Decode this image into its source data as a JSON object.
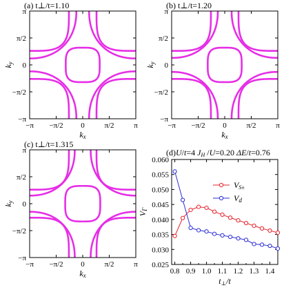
{
  "colors": {
    "fermi_surface": "#e62ee6",
    "axes": "#000000",
    "series_s": "#e8202a",
    "series_d": "#2b2bd6"
  },
  "fermi_panels": [
    {
      "label": "(a) t⊥/t=1.10",
      "xlabel": "kx",
      "ylabel": "ky",
      "xticks": [
        "−π",
        "−π/2",
        "0",
        "π/2",
        "π"
      ],
      "yticks": [
        "−π",
        "−π/2",
        "0",
        "π/2",
        "π"
      ],
      "curves": [
        {
          "kind": "closed_center",
          "a": 0.32,
          "p": 3.5
        },
        {
          "kind": "band_corner",
          "a": 0.26,
          "p": 3.8
        },
        {
          "kind": "small_corner",
          "a": 0.12,
          "p": 2.2
        }
      ]
    },
    {
      "label": "(b) t⊥/t=1.20",
      "xlabel": "kx",
      "ylabel": "ky",
      "xticks": [
        "−π",
        "−π/2",
        "0",
        "π/2",
        "π"
      ],
      "yticks": [
        "−π",
        "−π/2",
        "0",
        "π/2",
        "π"
      ],
      "curves": [
        {
          "kind": "closed_center",
          "a": 0.32,
          "p": 3.5
        },
        {
          "kind": "band_corner",
          "a": 0.26,
          "p": 3.8
        },
        {
          "kind": "small_corner",
          "a": 0.13,
          "p": 2.2
        }
      ]
    },
    {
      "label": "(c) t⊥/t=1.315",
      "xlabel": "kx",
      "ylabel": "ky",
      "xticks": [
        "−π",
        "−π/2",
        "0",
        "π/2",
        "π"
      ],
      "yticks": [
        "−π",
        "−π/2",
        "0",
        "π/2",
        "π"
      ],
      "curves": [
        {
          "kind": "closed_center",
          "a": 0.33,
          "p": 3.5
        },
        {
          "kind": "band_corner",
          "a": 0.26,
          "p": 3.8
        },
        {
          "kind": "small_corner",
          "a": 0.15,
          "p": 2.2
        }
      ]
    }
  ],
  "chart_data": {
    "type": "line",
    "title": "(d)U/t=4 JH /U=0.20 ΔE/t=0.76",
    "xlabel": "t⊥/t",
    "ylabel": "VΓ",
    "xlim": [
      0.78,
      1.45
    ],
    "ylim": [
      0.025,
      0.06
    ],
    "xticks": [
      0.8,
      0.9,
      1.0,
      1.1,
      1.2,
      1.3,
      1.4
    ],
    "xtick_labels": [
      "0.8",
      "0.9",
      "1.0",
      "1.1",
      "1.2",
      "1.3",
      "1.4"
    ],
    "yticks": [
      0.025,
      0.03,
      0.035,
      0.04,
      0.045,
      0.05,
      0.055,
      0.06
    ],
    "ytick_labels": [
      "0.025",
      "0.030",
      "0.035",
      "0.040",
      "0.045",
      "0.050",
      "0.055",
      "0.060"
    ],
    "legend_position": "top-right",
    "series": [
      {
        "name": "Vs±",
        "color": "#e8202a",
        "x": [
          0.8,
          0.85,
          0.9,
          0.95,
          1.0,
          1.05,
          1.1,
          1.15,
          1.2,
          1.25,
          1.3,
          1.35,
          1.4,
          1.45
        ],
        "y": [
          0.0345,
          0.0405,
          0.0432,
          0.0442,
          0.0439,
          0.0426,
          0.0416,
          0.0406,
          0.0397,
          0.0388,
          0.0379,
          0.037,
          0.0363,
          0.0356
        ]
      },
      {
        "name": "Vd",
        "color": "#2b2bd6",
        "x": [
          0.8,
          0.85,
          0.9,
          0.95,
          1.0,
          1.05,
          1.1,
          1.15,
          1.2,
          1.25,
          1.3,
          1.35,
          1.4,
          1.45
        ],
        "y": [
          0.056,
          0.0465,
          0.0372,
          0.0364,
          0.036,
          0.0352,
          0.0347,
          0.0342,
          0.0337,
          0.0332,
          0.0318,
          0.0316,
          0.0312,
          0.0303
        ]
      }
    ]
  }
}
